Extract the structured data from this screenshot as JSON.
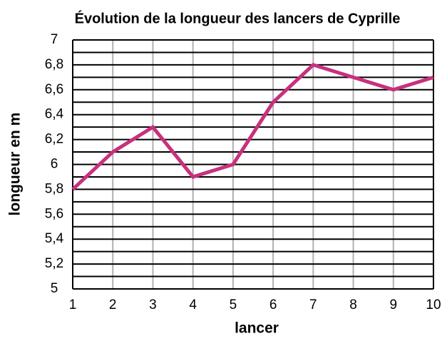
{
  "chart_data": {
    "type": "line",
    "title": "Évolution de la longueur des lancers de Cyprille",
    "x_label": "lancer",
    "y_label": "longueur en m",
    "x": [
      1,
      2,
      3,
      4,
      5,
      6,
      7,
      8,
      9,
      10
    ],
    "series": [
      {
        "color": "#c7317d",
        "values": [
          5.8,
          6.1,
          6.3,
          5.9,
          6.0,
          6.5,
          6.8,
          6.7,
          6.6,
          6.7
        ]
      }
    ],
    "xlim": [
      1,
      10
    ],
    "xticks": [
      1,
      2,
      3,
      4,
      5,
      6,
      7,
      8,
      9,
      10
    ],
    "ylim": [
      5,
      7
    ],
    "yticks": [
      5,
      {
        "value": 5.2,
        "label": "5,2"
      },
      {
        "value": 5.4,
        "label": "5,4"
      },
      {
        "value": 5.6,
        "label": "5,6"
      },
      {
        "value": 5.8,
        "label": "5,8"
      },
      6,
      {
        "value": 6.2,
        "label": "6,2"
      },
      {
        "value": 6.4,
        "label": "6,4"
      },
      {
        "value": 6.6,
        "label": "6,6"
      },
      {
        "value": 6.8,
        "label": "6,8"
      },
      7
    ],
    "y_minor_ticks": [
      5.1,
      5.3,
      5.5,
      5.7,
      5.9,
      6.1,
      6.3,
      6.5,
      6.7,
      6.9
    ],
    "grid": true
  }
}
